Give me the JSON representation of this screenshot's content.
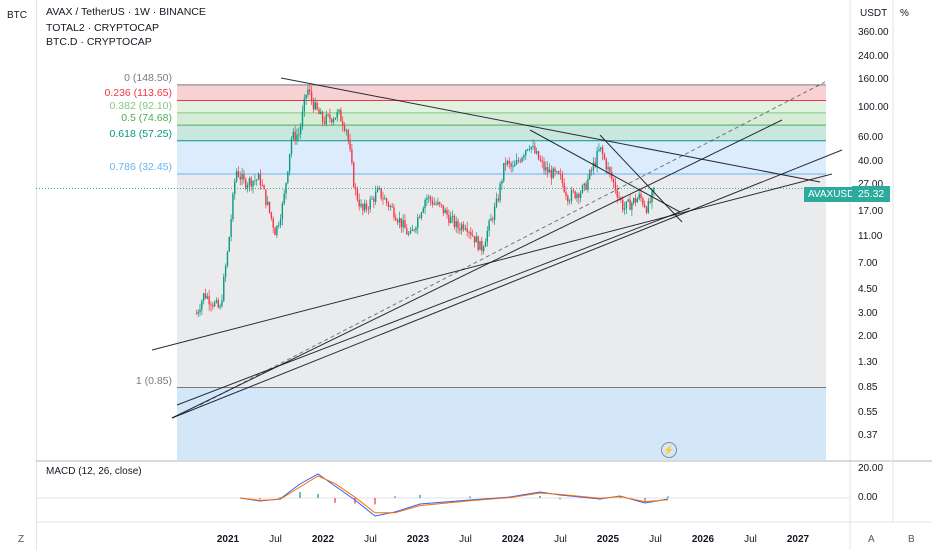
{
  "header": {
    "symbol": "BTC",
    "title": "AVAX / TetherUS · 1W · BINANCE",
    "overlays": [
      "TOTAL2 · CRYPTOCAP",
      "BTC.D · CRYPTOCAP"
    ],
    "currency": "USDT",
    "percent_label": "%"
  },
  "fib_levels": [
    {
      "label": "0 (148.50)",
      "value": 148.5,
      "color": "#787b86"
    },
    {
      "label": "0.236 (113.65)",
      "value": 113.65,
      "color": "#f23645"
    },
    {
      "label": "0.382 (92.10)",
      "value": 92.1,
      "color": "#81c784"
    },
    {
      "label": "0.5 (74.68)",
      "value": 74.68,
      "color": "#4caf50"
    },
    {
      "label": "0.618 (57.25)",
      "value": 57.25,
      "color": "#089981"
    },
    {
      "label": "0.786 (32.45)",
      "value": 32.45,
      "color": "#64b5f6"
    },
    {
      "label": "1 (0.85)",
      "value": 0.85,
      "color": "#787b86"
    }
  ],
  "price_badge": {
    "symbol": "AVAXUSDT",
    "value": "25.32"
  },
  "macd": {
    "label": "MACD (12, 26, close)",
    "ticks": [
      "20.00",
      "0.00"
    ]
  },
  "bottom": {
    "zoom": "Z",
    "auto": "A",
    "log": "B"
  },
  "chart_data": {
    "type": "candlestick",
    "scale": "log",
    "y_ticks": [
      "360.00",
      "240.00",
      "160.00",
      "100.00",
      "60.00",
      "40.00",
      "27.00",
      "17.00",
      "11.00",
      "7.00",
      "4.50",
      "3.00",
      "2.00",
      "1.30",
      "0.85",
      "0.55",
      "0.37"
    ],
    "x_ticks": [
      "2021",
      "Jul",
      "2022",
      "Jul",
      "2023",
      "Jul",
      "2024",
      "Jul",
      "2025",
      "Jul",
      "2026",
      "Jul",
      "2027"
    ],
    "price_path": [
      [
        "2020-09",
        3.0
      ],
      [
        "2020-10",
        4.2
      ],
      [
        "2020-12",
        3.2
      ],
      [
        "2021-01",
        9.0
      ],
      [
        "2021-02",
        35.0
      ],
      [
        "2021-03",
        28.0
      ],
      [
        "2021-05",
        30.0
      ],
      [
        "2021-07",
        12.0
      ],
      [
        "2021-08",
        20.0
      ],
      [
        "2021-09",
        60.0
      ],
      [
        "2021-10",
        65.0
      ],
      [
        "2021-11",
        140.0
      ],
      [
        "2021-12",
        100.0
      ],
      [
        "2022-01",
        80.0
      ],
      [
        "2022-02",
        85.0
      ],
      [
        "2022-03",
        90.0
      ],
      [
        "2022-04",
        70.0
      ],
      [
        "2022-05",
        25.0
      ],
      [
        "2022-06",
        17.0
      ],
      [
        "2022-08",
        24.0
      ],
      [
        "2022-10",
        17.0
      ],
      [
        "2022-12",
        11.0
      ],
      [
        "2023-02",
        22.0
      ],
      [
        "2023-04",
        18.0
      ],
      [
        "2023-06",
        13.0
      ],
      [
        "2023-07",
        14.0
      ],
      [
        "2023-09",
        9.0
      ],
      [
        "2023-11",
        20.0
      ],
      [
        "2023-12",
        40.0
      ],
      [
        "2024-01",
        35.0
      ],
      [
        "2024-03",
        55.0
      ],
      [
        "2024-05",
        35.0
      ],
      [
        "2024-07",
        30.0
      ],
      [
        "2024-08",
        22.0
      ],
      [
        "2024-10",
        25.0
      ],
      [
        "2024-12",
        50.0
      ],
      [
        "2025-01",
        35.0
      ],
      [
        "2025-03",
        18.0
      ],
      [
        "2025-05",
        22.0
      ],
      [
        "2025-06",
        18.0
      ],
      [
        "2025-07",
        25.32
      ]
    ]
  }
}
